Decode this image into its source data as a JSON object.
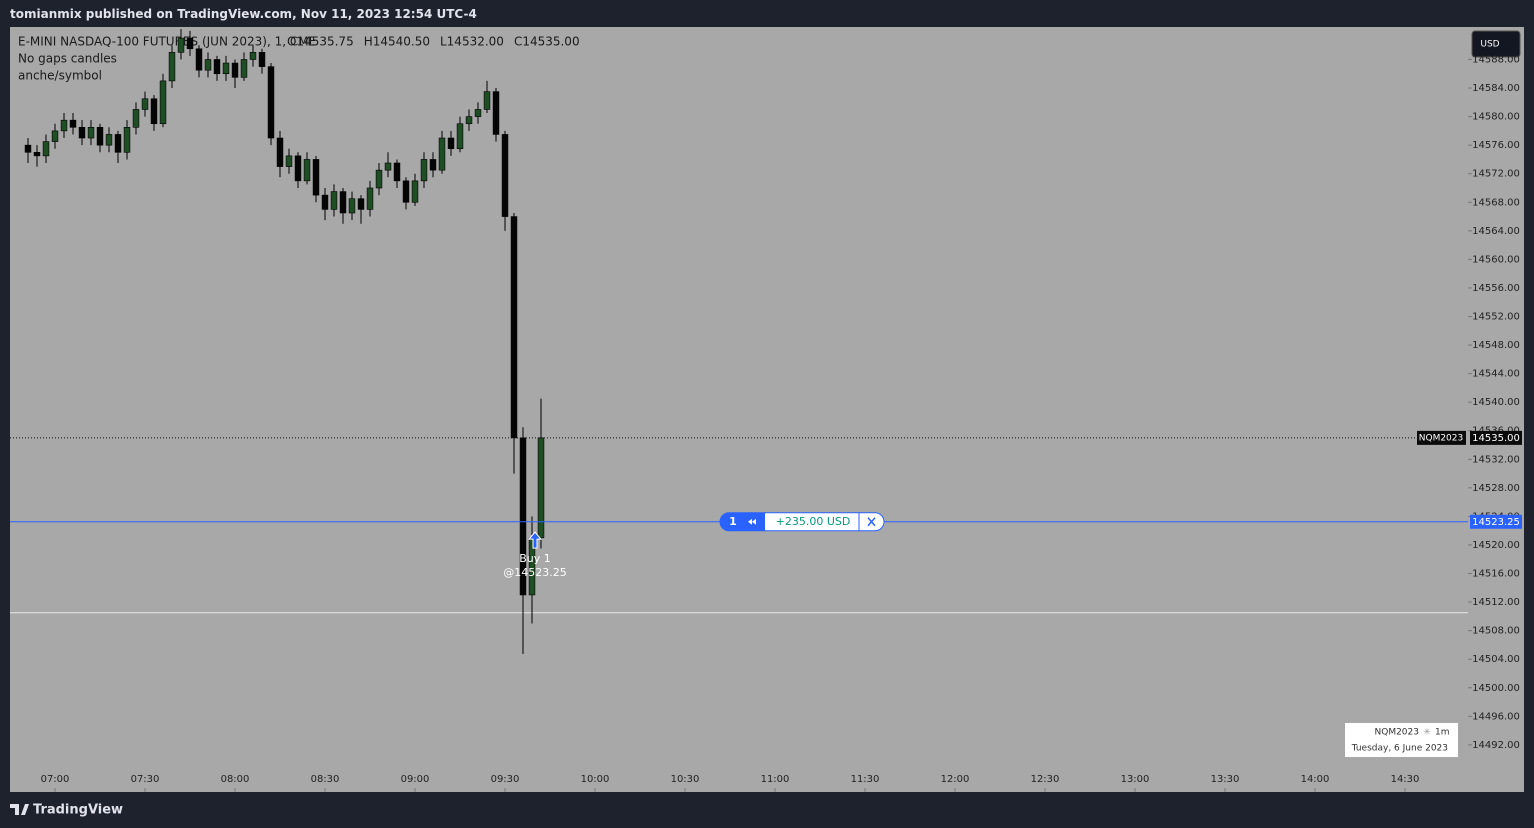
{
  "header": {
    "published": "tomianmix published on TradingView.com, Nov 11, 2023 12:54 UTC-4"
  },
  "footer": {
    "brand": "TradingView"
  },
  "currency_button": "USD",
  "chart_data": {
    "type": "candlestick",
    "title": "E-MINI NASDAQ-100 FUTURES (JUN 2023), 1, CME",
    "ohlc_labels": [
      "O14535.75",
      "H14540.50",
      "L14532.00",
      "C14535.00"
    ],
    "indicators": [
      "No gaps candles",
      "anche/symbol"
    ],
    "up_color": "#1f4d24",
    "down_color": "#050505",
    "x": [
      "06:51",
      "06:54",
      "06:57",
      "07:00",
      "07:03",
      "07:06",
      "07:09",
      "07:12",
      "07:15",
      "07:18",
      "07:21",
      "07:24",
      "07:27",
      "07:30",
      "07:33",
      "07:36",
      "07:39",
      "07:42",
      "07:45",
      "07:48",
      "07:51",
      "07:54",
      "07:57",
      "08:00",
      "08:03",
      "08:06",
      "08:09",
      "08:12",
      "08:15",
      "08:18",
      "08:21",
      "08:24",
      "08:27",
      "08:30",
      "08:33",
      "08:36",
      "08:39",
      "08:42",
      "08:45",
      "08:48",
      "08:51",
      "08:54",
      "08:57",
      "09:00",
      "09:03",
      "09:06",
      "09:09",
      "09:12",
      "09:15",
      "09:18",
      "09:21",
      "09:24",
      "09:27",
      "09:30",
      "09:33",
      "09:36",
      "09:39",
      "09:42"
    ],
    "open": [
      14576.0,
      14575.0,
      14574.5,
      14576.5,
      14578.0,
      14579.5,
      14578.5,
      14577.0,
      14578.5,
      14576.0,
      14577.5,
      14575.0,
      14578.5,
      14581.0,
      14582.5,
      14579.0,
      14585.0,
      14589.0,
      14591.0,
      14589.5,
      14586.5,
      14588.0,
      14586.0,
      14587.5,
      14585.5,
      14588.0,
      14589.0,
      14587.0,
      14577.0,
      14573.0,
      14574.5,
      14571.0,
      14574.0,
      14569.0,
      14567.0,
      14569.5,
      14566.5,
      14568.5,
      14567.0,
      14570.0,
      14572.5,
      14573.5,
      14571.0,
      14568.0,
      14571.0,
      14574.0,
      14572.5,
      14577.0,
      14575.5,
      14579.0,
      14580.0,
      14581.0,
      14583.5,
      14577.5,
      14566.0,
      14535.0,
      14513.0,
      14521.0
    ],
    "high": [
      14577.0,
      14576.0,
      14577.5,
      14579.0,
      14580.5,
      14580.5,
      14579.5,
      14579.5,
      14579.0,
      14578.5,
      14578.0,
      14579.5,
      14582.0,
      14583.5,
      14583.0,
      14586.0,
      14590.0,
      14592.25,
      14592.0,
      14590.0,
      14589.0,
      14588.5,
      14588.5,
      14588.0,
      14589.0,
      14590.0,
      14589.5,
      14587.5,
      14578.0,
      14575.5,
      14575.0,
      14575.0,
      14574.5,
      14570.0,
      14570.5,
      14570.0,
      14569.5,
      14569.0,
      14571.0,
      14573.5,
      14575.0,
      14574.0,
      14571.5,
      14572.0,
      14575.0,
      14575.0,
      14578.0,
      14578.0,
      14580.0,
      14581.0,
      14582.0,
      14585.0,
      14584.0,
      14578.0,
      14566.5,
      14536.5,
      14524.0,
      14540.5
    ],
    "low": [
      14573.5,
      14573.0,
      14573.5,
      14575.5,
      14577.0,
      14577.5,
      14576.0,
      14576.0,
      14575.0,
      14575.0,
      14573.5,
      14574.0,
      14577.5,
      14580.0,
      14578.0,
      14578.5,
      14584.0,
      14588.0,
      14588.5,
      14585.5,
      14585.5,
      14585.0,
      14585.0,
      14584.0,
      14585.0,
      14587.0,
      14586.0,
      14576.0,
      14571.5,
      14572.0,
      14570.0,
      14570.5,
      14568.0,
      14565.5,
      14566.0,
      14565.0,
      14565.5,
      14565.0,
      14566.0,
      14569.0,
      14571.5,
      14570.0,
      14567.0,
      14567.5,
      14570.0,
      14571.5,
      14572.0,
      14574.5,
      14575.0,
      14578.0,
      14579.0,
      14580.5,
      14576.5,
      14564.0,
      14530.0,
      14504.75,
      14509.0,
      14519.5
    ],
    "close": [
      14575.0,
      14574.5,
      14576.5,
      14578.0,
      14579.5,
      14578.5,
      14577.0,
      14578.5,
      14576.0,
      14577.5,
      14575.0,
      14578.5,
      14581.0,
      14582.5,
      14579.0,
      14585.0,
      14589.0,
      14591.0,
      14589.5,
      14586.5,
      14588.0,
      14586.0,
      14587.5,
      14585.5,
      14588.0,
      14589.0,
      14587.0,
      14577.0,
      14573.0,
      14574.5,
      14571.0,
      14574.0,
      14569.0,
      14567.0,
      14569.5,
      14566.5,
      14568.5,
      14567.0,
      14570.0,
      14572.5,
      14573.5,
      14571.0,
      14568.0,
      14571.0,
      14574.0,
      14572.5,
      14577.0,
      14575.5,
      14579.0,
      14580.0,
      14581.0,
      14583.5,
      14577.5,
      14566.0,
      14535.0,
      14513.0,
      14521.0,
      14535.0
    ],
    "xlim": [
      "06:45",
      "14:51"
    ],
    "xticks": [
      "07:00",
      "07:30",
      "08:00",
      "08:30",
      "09:00",
      "09:30",
      "10:00",
      "10:30",
      "11:00",
      "11:30",
      "12:00",
      "12:30",
      "13:00",
      "13:30",
      "14:00",
      "14:30"
    ],
    "ylim": [
      14485.4,
      14592.55
    ],
    "yticks": [
      {
        "value": 14492,
        "label": "14492.00"
      },
      {
        "value": 14496,
        "label": "14496.00"
      },
      {
        "value": 14500,
        "label": "14500.00"
      },
      {
        "value": 14504,
        "label": "14504.00"
      },
      {
        "value": 14508,
        "label": "14508.00"
      },
      {
        "value": 14512,
        "label": "14512.00"
      },
      {
        "value": 14516,
        "label": "14516.00"
      },
      {
        "value": 14520,
        "label": "14520.00"
      },
      {
        "value": 14524,
        "label": "14524.00"
      },
      {
        "value": 14528,
        "label": "14528.00"
      },
      {
        "value": 14532,
        "label": "14532.00"
      },
      {
        "value": 14536,
        "label": "14536.00"
      },
      {
        "value": 14540,
        "label": "14540.00"
      },
      {
        "value": 14544,
        "label": "14544.00"
      },
      {
        "value": 14548,
        "label": "14548.00"
      },
      {
        "value": 14552,
        "label": "14552.00"
      },
      {
        "value": 14556,
        "label": "14556.00"
      },
      {
        "value": 14560,
        "label": "14560.00"
      },
      {
        "value": 14564,
        "label": "14564.00"
      },
      {
        "value": 14568,
        "label": "14568.00"
      },
      {
        "value": 14572,
        "label": "14572.00"
      },
      {
        "value": 14576,
        "label": "14576.00"
      },
      {
        "value": 14580,
        "label": "14580.00"
      },
      {
        "value": 14584,
        "label": "14584.00"
      },
      {
        "value": 14588,
        "label": "14588.00"
      }
    ],
    "last_price": {
      "symbol": "NQM2023",
      "value": 14535,
      "label": "14535.00"
    },
    "position": {
      "price": 14523.25,
      "qty": 1,
      "pnl": "+235.00 USD"
    },
    "buy_marker": {
      "x": "09:40",
      "price": 14521.8,
      "label": "Buy 1",
      "price_label": "@14523.25"
    },
    "level_line": 14510.5,
    "info_box": {
      "symbol": "NQM2023",
      "interval": "1m",
      "date": "Tuesday, 6 June 2023"
    }
  }
}
